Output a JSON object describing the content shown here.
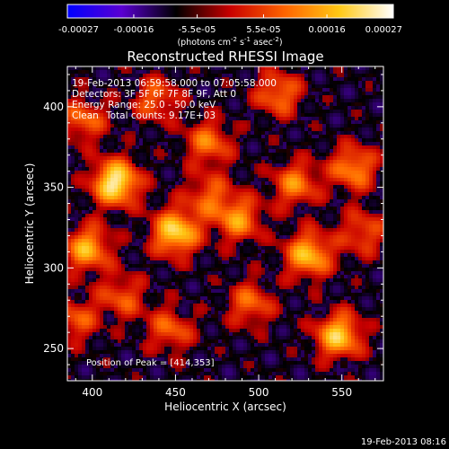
{
  "chart_data": {
    "type": "heatmap",
    "title": "Reconstructed RHESSI Image",
    "xlabel": "Heliocentric X (arcsec)",
    "ylabel": "Heliocentric Y (arcsec)",
    "xlim": [
      385,
      575
    ],
    "ylim": [
      230,
      425
    ],
    "x_ticks": [
      "400",
      "450",
      "500",
      "550"
    ],
    "y_ticks": [
      "250",
      "300",
      "350",
      "400"
    ],
    "colorbar": {
      "min": -0.00027,
      "max": 0.00027,
      "tick_labels": [
        "-0.00027",
        "-0.00016",
        "-5.5e-05",
        "5.5e-05",
        "0.00016",
        "0.00027"
      ],
      "label_prefix": "(photons cm",
      "label_sup1": "-2",
      "label_mid1": " s",
      "label_sup2": "-1",
      "label_mid2": " asec",
      "label_sup3": "-2",
      "label_suffix": ")",
      "colormap_hex": [
        "#0000ff",
        "#5a00d2",
        "#000000",
        "#c80000",
        "#ff6400",
        "#ffc814",
        "#ffffff"
      ]
    },
    "annotations": {
      "time_range": "19-Feb-2013 06:59:58.000 to 07:05:58.000",
      "detectors": "Detectors: 3F 5F 6F 7F 8F 9F, Att 0",
      "energy_range": "Energy Range: 25.0 - 50.0 keV",
      "clean": "Clean",
      "total_counts": "Total counts: 9.17E+03",
      "peak_position": "Position of Peak = [414,353]"
    },
    "grid": false,
    "peak": {
      "x": 414,
      "y": 353
    },
    "sources": [
      {
        "x": 414,
        "y": 353,
        "intensity": 1.0
      },
      {
        "x": 450,
        "y": 322,
        "intensity": 0.88
      },
      {
        "x": 397,
        "y": 312,
        "intensity": 0.72
      },
      {
        "x": 548,
        "y": 258,
        "intensity": 0.82
      },
      {
        "x": 530,
        "y": 308,
        "intensity": 0.78
      },
      {
        "x": 488,
        "y": 330,
        "intensity": 0.62
      },
      {
        "x": 557,
        "y": 362,
        "intensity": 0.62
      },
      {
        "x": 470,
        "y": 378,
        "intensity": 0.55
      },
      {
        "x": 512,
        "y": 408,
        "intensity": 0.55
      },
      {
        "x": 395,
        "y": 392,
        "intensity": 0.5
      },
      {
        "x": 438,
        "y": 405,
        "intensity": 0.48
      },
      {
        "x": 447,
        "y": 262,
        "intensity": 0.48
      },
      {
        "x": 418,
        "y": 282,
        "intensity": 0.45
      },
      {
        "x": 495,
        "y": 278,
        "intensity": 0.5
      },
      {
        "x": 522,
        "y": 352,
        "intensity": 0.58
      },
      {
        "x": 390,
        "y": 268,
        "intensity": 0.45
      },
      {
        "x": 563,
        "y": 322,
        "intensity": 0.45
      },
      {
        "x": 470,
        "y": 345,
        "intensity": 0.45
      }
    ]
  },
  "footer_timestamp": "19-Feb-2013 08:16"
}
